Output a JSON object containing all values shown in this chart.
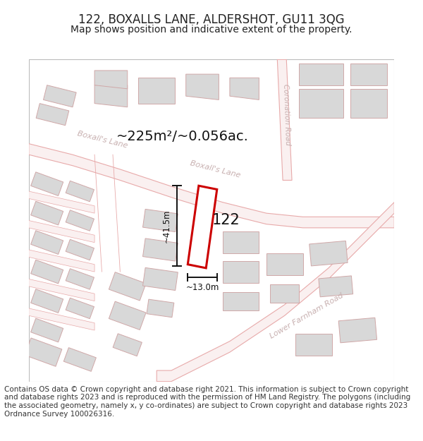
{
  "title": "122, BOXALLS LANE, ALDERSHOT, GU11 3QG",
  "subtitle": "Map shows position and indicative extent of the property.",
  "footer": "Contains OS data © Crown copyright and database right 2021. This information is subject to Crown copyright and database rights 2023 and is reproduced with the permission of HM Land Registry. The polygons (including the associated geometry, namely x, y co-ordinates) are subject to Crown copyright and database rights 2023 Ordnance Survey 100026316.",
  "area_text": "~225m²/~0.056ac.",
  "property_number": "122",
  "dim_height": "~41.5m",
  "dim_width": "~13.0m",
  "map_bg": "#ffffff",
  "road_line_color": "#e8aaaa",
  "road_fill_color": "#f8e8e8",
  "building_fill": "#d8d8d8",
  "building_outline": "#d0a8a8",
  "highlight_color": "#cc0000",
  "road_label_color": "#c8b0b0",
  "text_color": "#222222",
  "title_fontsize": 12,
  "subtitle_fontsize": 10,
  "footer_fontsize": 7.5
}
